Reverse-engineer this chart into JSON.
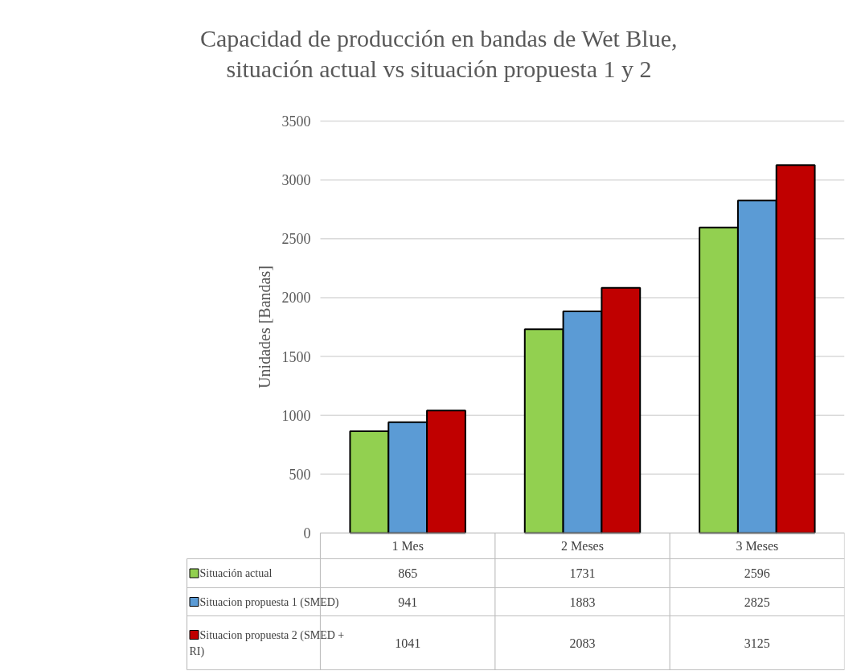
{
  "chart_data": {
    "type": "bar",
    "title": "Capacidad de producción en bandas de Wet Blue,\nsituación actual vs situación propuesta 1 y 2",
    "ylabel": "Unidades [Bandas]",
    "categories": [
      "1 Mes",
      "2 Meses",
      "3 Meses"
    ],
    "series": [
      {
        "name": "Situación actual",
        "color": "#92d050",
        "values": [
          865,
          1731,
          2596
        ]
      },
      {
        "name": "Situacion propuesta 1 (SMED)",
        "color": "#5b9bd5",
        "values": [
          941,
          1883,
          2825
        ]
      },
      {
        "name": "Situacion propuesta 2 (SMED + RI)",
        "color": "#c00000",
        "values": [
          1041,
          2083,
          3125
        ]
      }
    ],
    "ylim": [
      0,
      3500
    ],
    "yticks": [
      0,
      500,
      1000,
      1500,
      2000,
      2500,
      3000,
      3500
    ],
    "grid": "y",
    "legend": "bottom",
    "data_labels": true
  }
}
